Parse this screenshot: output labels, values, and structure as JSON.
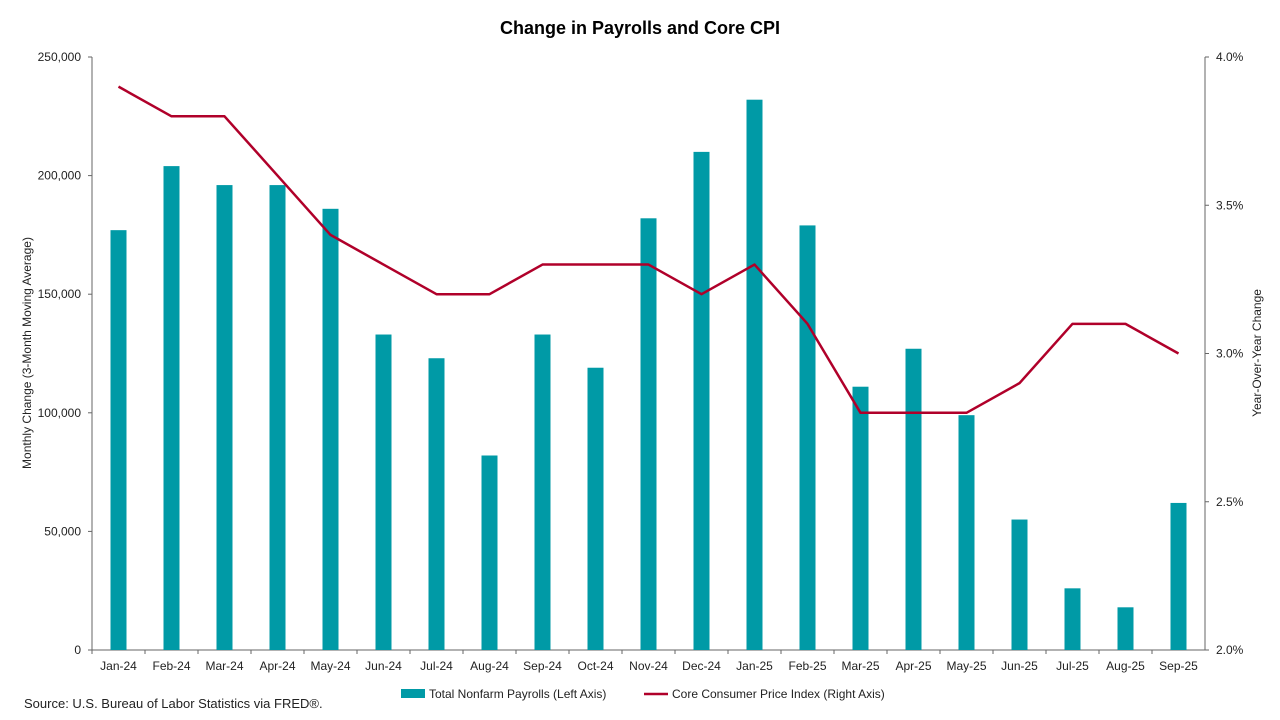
{
  "chart_data": {
    "type": "bar+line",
    "title": "Change in Payrolls and Core CPI",
    "categories": [
      "Jan-24",
      "Feb-24",
      "Mar-24",
      "Apr-24",
      "May-24",
      "Jun-24",
      "Jul-24",
      "Aug-24",
      "Sep-24",
      "Oct-24",
      "Nov-24",
      "Dec-24",
      "Jan-25",
      "Feb-25",
      "Mar-25",
      "Apr-25",
      "May-25",
      "Jun-25",
      "Jul-25",
      "Aug-25",
      "Sep-25"
    ],
    "series": [
      {
        "name": "Total Nonfarm Payrolls (Left Axis)",
        "type": "bar",
        "axis": "left",
        "color": "#009aa6",
        "values": [
          177000,
          204000,
          196000,
          196000,
          186000,
          133000,
          123000,
          82000,
          133000,
          119000,
          182000,
          210000,
          232000,
          179000,
          111000,
          127000,
          99000,
          55000,
          26000,
          18000,
          62000
        ]
      },
      {
        "name": "Core Consumer Price Index (Right Axis)",
        "type": "line",
        "axis": "right",
        "color": "#b0002a",
        "values": [
          3.9,
          3.8,
          3.8,
          3.6,
          3.4,
          3.3,
          3.2,
          3.2,
          3.3,
          3.3,
          3.3,
          3.2,
          3.3,
          3.1,
          2.8,
          2.8,
          2.8,
          2.9,
          3.1,
          3.1,
          3.0
        ]
      }
    ],
    "y_left": {
      "label": "Monthly Change (3-Month Moving Average)",
      "range": [
        0,
        250000
      ],
      "ticks": [
        "0",
        "50,000",
        "100,000",
        "150,000",
        "200,000",
        "250,000"
      ]
    },
    "y_right": {
      "label": "Year-Over-Year Change",
      "range": [
        2.0,
        4.0
      ],
      "ticks": [
        "2.0%",
        "2.5%",
        "3.0%",
        "3.5%",
        "4.0%"
      ]
    },
    "grid": false,
    "legend": "bottom"
  },
  "source": "Source: U.S. Bureau of Labor Statistics via FRED®."
}
